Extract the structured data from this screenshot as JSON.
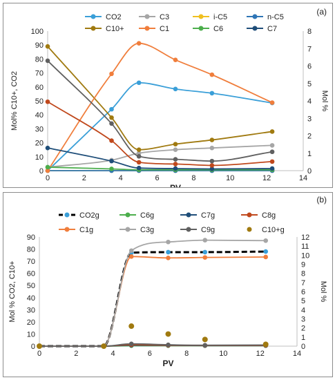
{
  "chart_data": [
    {
      "type": "line",
      "panel_label": "(a)",
      "xlabel": "PV",
      "ylabel_left": "Mol%  C10+, CO2",
      "ylabel_right": "Mol %",
      "xlim": [
        0,
        14
      ],
      "xticks": [
        "0",
        "2",
        "4",
        "6",
        "8",
        "10",
        "12",
        "14"
      ],
      "ylim_left": [
        0,
        100
      ],
      "yticks_left": [
        "0",
        "10",
        "20",
        "30",
        "40",
        "50",
        "60",
        "70",
        "80",
        "90",
        "100"
      ],
      "ylim_right": [
        0,
        8
      ],
      "yticks_right": [
        "0",
        "1",
        "2",
        "3",
        "4",
        "5",
        "6",
        "7",
        "8"
      ],
      "legend_position": "top",
      "grid": false,
      "series": [
        {
          "name": "CO2",
          "axis": "left",
          "color": "#3a9fd8",
          "x": [
            0,
            3.5,
            5,
            7,
            9,
            12.3
          ],
          "y": [
            0,
            44,
            63,
            58.5,
            55.5,
            48.5
          ]
        },
        {
          "name": "C3",
          "axis": "right",
          "color": "#a6a6a6",
          "x": [
            0,
            3.5,
            5,
            7,
            9,
            12.3
          ],
          "y": [
            0.2,
            0.6,
            1.0,
            1.2,
            1.3,
            1.45
          ]
        },
        {
          "name": "i-C5",
          "axis": "right",
          "color": "#f0c020",
          "x": [
            0,
            3.5,
            5,
            7,
            9,
            12.3
          ],
          "y": [
            0,
            0,
            0,
            0,
            0,
            0
          ]
        },
        {
          "name": "n-C5",
          "axis": "right",
          "color": "#2e75b6",
          "x": [
            0,
            3.5,
            5,
            7,
            9,
            12.3
          ],
          "y": [
            0,
            0,
            0,
            0,
            0,
            0
          ]
        },
        {
          "name": "C10+",
          "axis": "left",
          "color": "#a07a10",
          "x": [
            0,
            3.5,
            5,
            7,
            9,
            12.3
          ],
          "y": [
            89,
            38,
            15,
            19,
            22,
            28
          ]
        },
        {
          "name": "C1",
          "axis": "right",
          "color": "#f07e3c",
          "x": [
            0,
            3.5,
            5,
            7,
            9,
            12.3
          ],
          "y": [
            0,
            5.55,
            7.3,
            6.35,
            5.5,
            3.9
          ]
        },
        {
          "name": "C6",
          "axis": "right",
          "color": "#4cae4c",
          "x": [
            0,
            3.5,
            5,
            7,
            9,
            12.3
          ],
          "y": [
            0.2,
            0.1,
            0.05,
            0.05,
            0.05,
            0.05
          ]
        },
        {
          "name": "C7",
          "axis": "right",
          "color": "#1f4e79",
          "x": [
            0,
            3.5,
            5,
            7,
            9,
            12.3
          ],
          "y": [
            1.3,
            0.55,
            0.15,
            0.12,
            0.1,
            0.12
          ]
        },
        {
          "name": "",
          "axis": "right",
          "color": "#c0481c",
          "x": [
            0,
            3.5,
            5,
            7,
            9,
            12.3
          ],
          "y": [
            3.95,
            1.72,
            0.48,
            0.38,
            0.3,
            0.52
          ]
        },
        {
          "name": "",
          "axis": "right",
          "color": "#606060",
          "x": [
            0,
            3.5,
            5,
            7,
            9,
            12.3
          ],
          "y": [
            6.3,
            2.7,
            0.82,
            0.65,
            0.55,
            1.08
          ]
        }
      ]
    },
    {
      "type": "line",
      "panel_label": "(b)",
      "xlabel": "PV",
      "ylabel_left": "Mol % CO2, C10+",
      "ylabel_right": "Mol %",
      "xlim": [
        0,
        14
      ],
      "xticks": [
        "0",
        "2",
        "4",
        "6",
        "8",
        "10",
        "12",
        "14"
      ],
      "ylim_left": [
        0,
        90
      ],
      "yticks_left": [
        "0",
        "10",
        "20",
        "30",
        "40",
        "50",
        "60",
        "70",
        "80",
        "90"
      ],
      "ylim_right": [
        0,
        12
      ],
      "yticks_right": [
        "0",
        "1",
        "2",
        "3",
        "4",
        "5",
        "6",
        "7",
        "8",
        "9",
        "10",
        "11",
        "12"
      ],
      "legend_position": "top",
      "grid": false,
      "series": [
        {
          "name": "CO2g",
          "axis": "left",
          "color": "#3a9fd8",
          "line_color": "#000000",
          "dashed": true,
          "x": [
            0,
            3.5,
            5,
            7,
            9,
            12.3
          ],
          "y": [
            0,
            0,
            77,
            77.5,
            77.5,
            78
          ]
        },
        {
          "name": "C6g",
          "axis": "right",
          "color": "#4cae4c",
          "x": [
            0,
            3.5,
            5,
            7,
            9,
            12.3
          ],
          "y": [
            0,
            0,
            0.05,
            0.05,
            0.05,
            0.05
          ]
        },
        {
          "name": "C7g",
          "axis": "right",
          "color": "#1f4e79",
          "x": [
            0,
            3.5,
            5,
            7,
            9,
            12.3
          ],
          "y": [
            0,
            0,
            0.1,
            0.08,
            0.06,
            0.06
          ]
        },
        {
          "name": "C8g",
          "axis": "right",
          "color": "#c0481c",
          "x": [
            0,
            3.5,
            5,
            7,
            9,
            12.3
          ],
          "y": [
            0,
            0,
            0.15,
            0.1,
            0.08,
            0.08
          ]
        },
        {
          "name": "C1g",
          "axis": "right",
          "color": "#f07e3c",
          "x": [
            0,
            3.5,
            5,
            7,
            9,
            12.3
          ],
          "y": [
            0,
            0,
            9.85,
            9.7,
            9.75,
            9.8
          ]
        },
        {
          "name": "C3g",
          "axis": "right",
          "color": "#a6a6a6",
          "x": [
            0,
            3.5,
            5,
            7,
            9,
            12.3
          ],
          "y": [
            0,
            0,
            10.5,
            11.45,
            11.65,
            11.6
          ]
        },
        {
          "name": "C9g",
          "axis": "right",
          "color": "#606060",
          "x": [
            0,
            3.5,
            5,
            7,
            9,
            12.3
          ],
          "y": [
            0,
            0,
            0.25,
            0.15,
            0.1,
            0.12
          ]
        },
        {
          "name": "C10+g",
          "axis": "left",
          "color": "#a07a10",
          "markers_only": true,
          "x": [
            0,
            3.5,
            5,
            7,
            9,
            12.3
          ],
          "y": [
            0,
            0,
            16.5,
            10,
            5.5,
            1.5
          ]
        }
      ]
    }
  ]
}
